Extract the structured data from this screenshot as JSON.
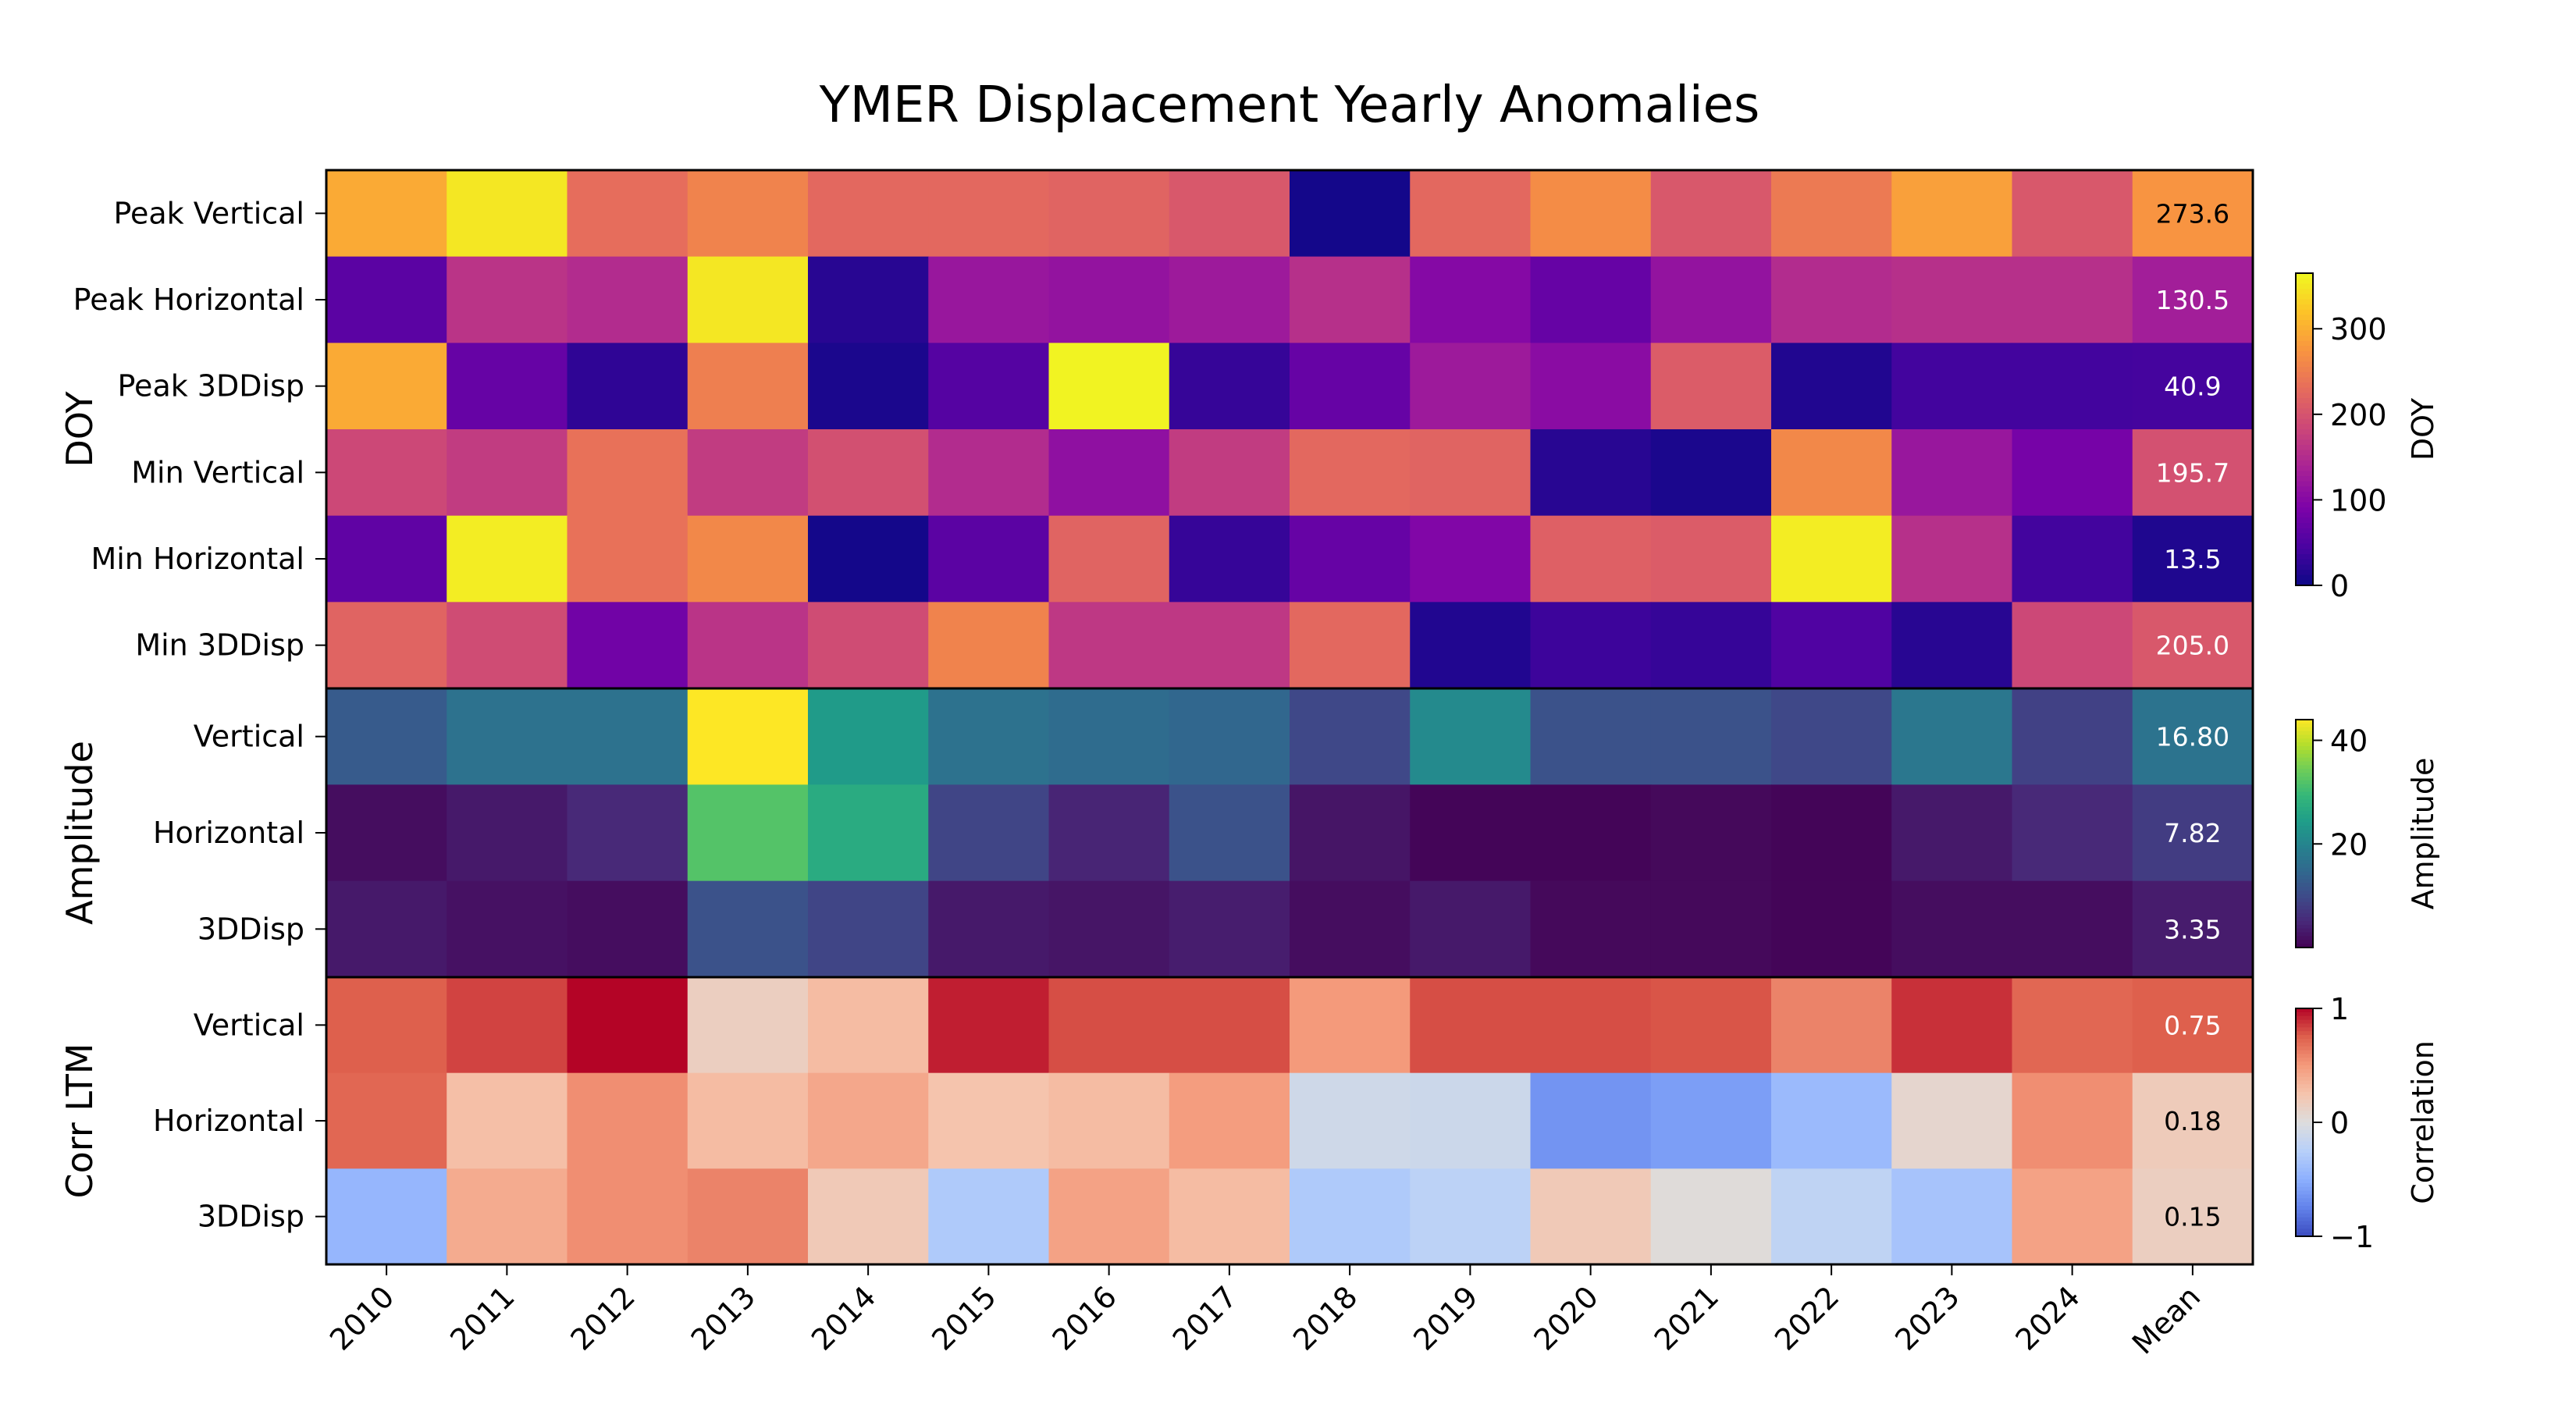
{
  "chart_data": {
    "type": "heatmap",
    "title": "YMER Displacement Yearly Anomalies",
    "x_categories": [
      "2010",
      "2011",
      "2012",
      "2013",
      "2014",
      "2015",
      "2016",
      "2017",
      "2018",
      "2019",
      "2020",
      "2021",
      "2022",
      "2023",
      "2024",
      "Mean"
    ],
    "panels": [
      {
        "ylabel": "DOY",
        "colormap": "plasma",
        "vmin": 0,
        "vmax": 365,
        "colorbar": {
          "label": "DOY",
          "ticks": [
            0,
            100,
            200,
            300
          ],
          "tick_labels": [
            "0",
            "100",
            "200",
            "300"
          ]
        },
        "rows": [
          {
            "label": "Peak Vertical",
            "values": [
              295,
              350,
              230,
              255,
              225,
              225,
              220,
              205,
              5,
              225,
              265,
              205,
              245,
              285,
              205,
              273.6
            ],
            "mean_label": "273.6"
          },
          {
            "label": "Peak Horizontal",
            "values": [
              60,
              160,
              150,
              350,
              20,
              120,
              115,
              125,
              155,
              100,
              70,
              115,
              150,
              155,
              155,
              130.5
            ],
            "mean_label": "130.5"
          },
          {
            "label": "Peak 3DDisp",
            "values": [
              295,
              70,
              25,
              250,
              10,
              55,
              360,
              30,
              70,
              125,
              105,
              210,
              15,
              40,
              40,
              40.9
            ],
            "mean_label": "40.9"
          },
          {
            "label": "Min Vertical",
            "values": [
              185,
              170,
              235,
              170,
              195,
              150,
              110,
              170,
              225,
              220,
              20,
              10,
              260,
              120,
              85,
              195.7
            ],
            "mean_label": "195.7"
          },
          {
            "label": "Min Horizontal",
            "values": [
              65,
              355,
              235,
              260,
              5,
              60,
              220,
              30,
              70,
              95,
              215,
              210,
              355,
              155,
              40,
              13.5
            ],
            "mean_label": "13.5"
          },
          {
            "label": "Min 3DDisp",
            "values": [
              220,
              190,
              80,
              160,
              190,
              255,
              165,
              165,
              225,
              15,
              35,
              30,
              50,
              20,
              185,
              205.0
            ],
            "mean_label": "205.0"
          }
        ]
      },
      {
        "ylabel": "Amplitude",
        "colormap": "viridis",
        "vmin": 0,
        "vmax": 44,
        "colorbar": {
          "label": "Amplitude",
          "ticks": [
            20,
            40
          ],
          "tick_labels": [
            "20",
            "40"
          ]
        },
        "rows": [
          {
            "label": "Vertical",
            "values": [
              12.5,
              16.5,
              16.5,
              44,
              24,
              16.5,
              15.5,
              14.5,
              9.5,
              21,
              11,
              11,
              9.5,
              17.5,
              8.5,
              16.8
            ],
            "mean_label": "16.80"
          },
          {
            "label": "Horizontal",
            "values": [
              1.5,
              3,
              5,
              32,
              27,
              9,
              4.5,
              11,
              2.5,
              0.5,
              0.5,
              1,
              0.5,
              3,
              5,
              7.82
            ],
            "mean_label": "7.82"
          },
          {
            "label": "3DDisp",
            "values": [
              3,
              2,
              1.5,
              11,
              9,
              3,
              2.5,
              3.5,
              1.5,
              3,
              1,
              1,
              0.5,
              1.5,
              1.5,
              3.35
            ],
            "mean_label": "3.35"
          }
        ]
      },
      {
        "ylabel": "Corr LTM",
        "colormap": "coolwarm",
        "vmin": -1,
        "vmax": 1,
        "colorbar": {
          "label": "Correlation",
          "ticks": [
            -1,
            0,
            1
          ],
          "tick_labels": [
            "−1",
            "0",
            "1"
          ]
        },
        "rows": [
          {
            "label": "Vertical",
            "values": [
              0.75,
              0.83,
              1.0,
              0.15,
              0.3,
              0.93,
              0.8,
              0.8,
              0.5,
              0.8,
              0.8,
              0.78,
              0.6,
              0.88,
              0.72,
              0.75
            ],
            "mean_label": "0.75"
          },
          {
            "label": "Horizontal",
            "values": [
              0.72,
              0.28,
              0.55,
              0.3,
              0.42,
              0.25,
              0.3,
              0.48,
              -0.1,
              -0.12,
              -0.65,
              -0.6,
              -0.42,
              0.08,
              0.55,
              0.18
            ],
            "mean_label": "0.18"
          },
          {
            "label": "3DDisp",
            "values": [
              -0.45,
              0.4,
              0.55,
              0.6,
              0.2,
              -0.3,
              0.45,
              0.3,
              -0.3,
              -0.22,
              0.2,
              0.02,
              -0.2,
              -0.35,
              0.45,
              0.15
            ],
            "mean_label": "0.15"
          }
        ]
      }
    ]
  }
}
